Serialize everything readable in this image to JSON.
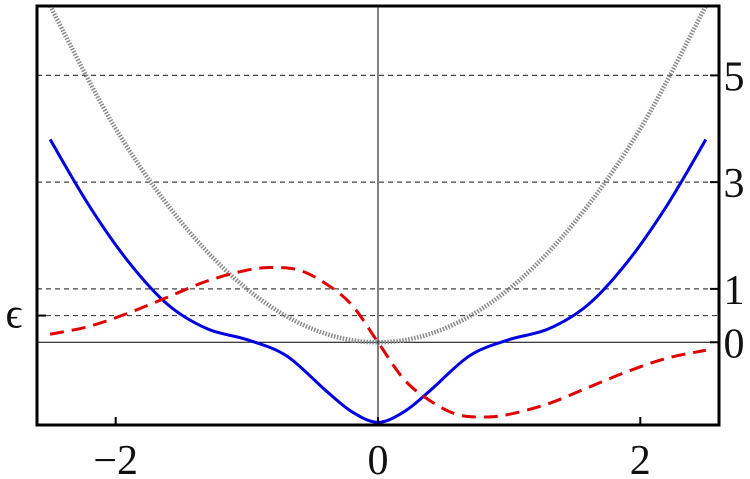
{
  "chart_data": {
    "type": "line",
    "title": "",
    "xlabel": "",
    "ylabel": "",
    "xlim": [
      -2.6,
      2.6
    ],
    "ylim": [
      -1.55,
      6.3
    ],
    "x_ticks": [
      -2,
      0,
      2
    ],
    "x_tick_labels": [
      "−2",
      "0",
      "2"
    ],
    "y_ticks_right": [
      0,
      1,
      3,
      5
    ],
    "y_tick_labels_right": [
      "0",
      "1",
      "3",
      "5"
    ],
    "epsilon_label": "ϵ",
    "epsilon_value": 0.5,
    "dashed_levels": [
      0.5,
      1,
      3,
      5
    ],
    "grid": false,
    "colors": {
      "gray": "#8a8a8a",
      "blue": "#0000e0",
      "red": "#e00000",
      "axis": "#000000",
      "dash": "#444444"
    },
    "series": [
      {
        "style": "gray-dotted",
        "x": [
          -2.5,
          -2.0,
          -1.5,
          -1.0,
          -0.5,
          0.0,
          0.5,
          1.0,
          1.5,
          2.0,
          2.5
        ],
        "values": [
          6.3,
          4.0,
          2.25,
          1.0,
          0.25,
          0.0,
          0.25,
          1.0,
          2.25,
          4.0,
          6.3
        ]
      },
      {
        "style": "blue-solid",
        "x": [
          -2.5,
          -2.2,
          -1.9,
          -1.6,
          -1.3,
          -1.0,
          -0.7,
          -0.4,
          -0.2,
          0.0,
          0.2,
          0.4,
          0.7,
          1.0,
          1.3,
          1.6,
          1.9,
          2.2,
          2.5
        ],
        "values": [
          3.8,
          2.55,
          1.5,
          0.7,
          0.25,
          0.05,
          -0.25,
          -0.9,
          -1.3,
          -1.5,
          -1.3,
          -0.9,
          -0.25,
          0.05,
          0.25,
          0.7,
          1.5,
          2.55,
          3.8
        ]
      },
      {
        "style": "red-dashed",
        "x": [
          -2.5,
          -2.2,
          -1.9,
          -1.6,
          -1.3,
          -1.0,
          -0.8,
          -0.6,
          -0.4,
          -0.2,
          0.0,
          0.2,
          0.4,
          0.6,
          0.8,
          1.0,
          1.3,
          1.6,
          1.9,
          2.2,
          2.5
        ],
        "values": [
          0.15,
          0.3,
          0.55,
          0.85,
          1.15,
          1.35,
          1.4,
          1.35,
          1.1,
          0.7,
          0.0,
          -0.7,
          -1.1,
          -1.35,
          -1.4,
          -1.35,
          -1.15,
          -0.85,
          -0.55,
          -0.3,
          -0.15
        ]
      }
    ]
  }
}
